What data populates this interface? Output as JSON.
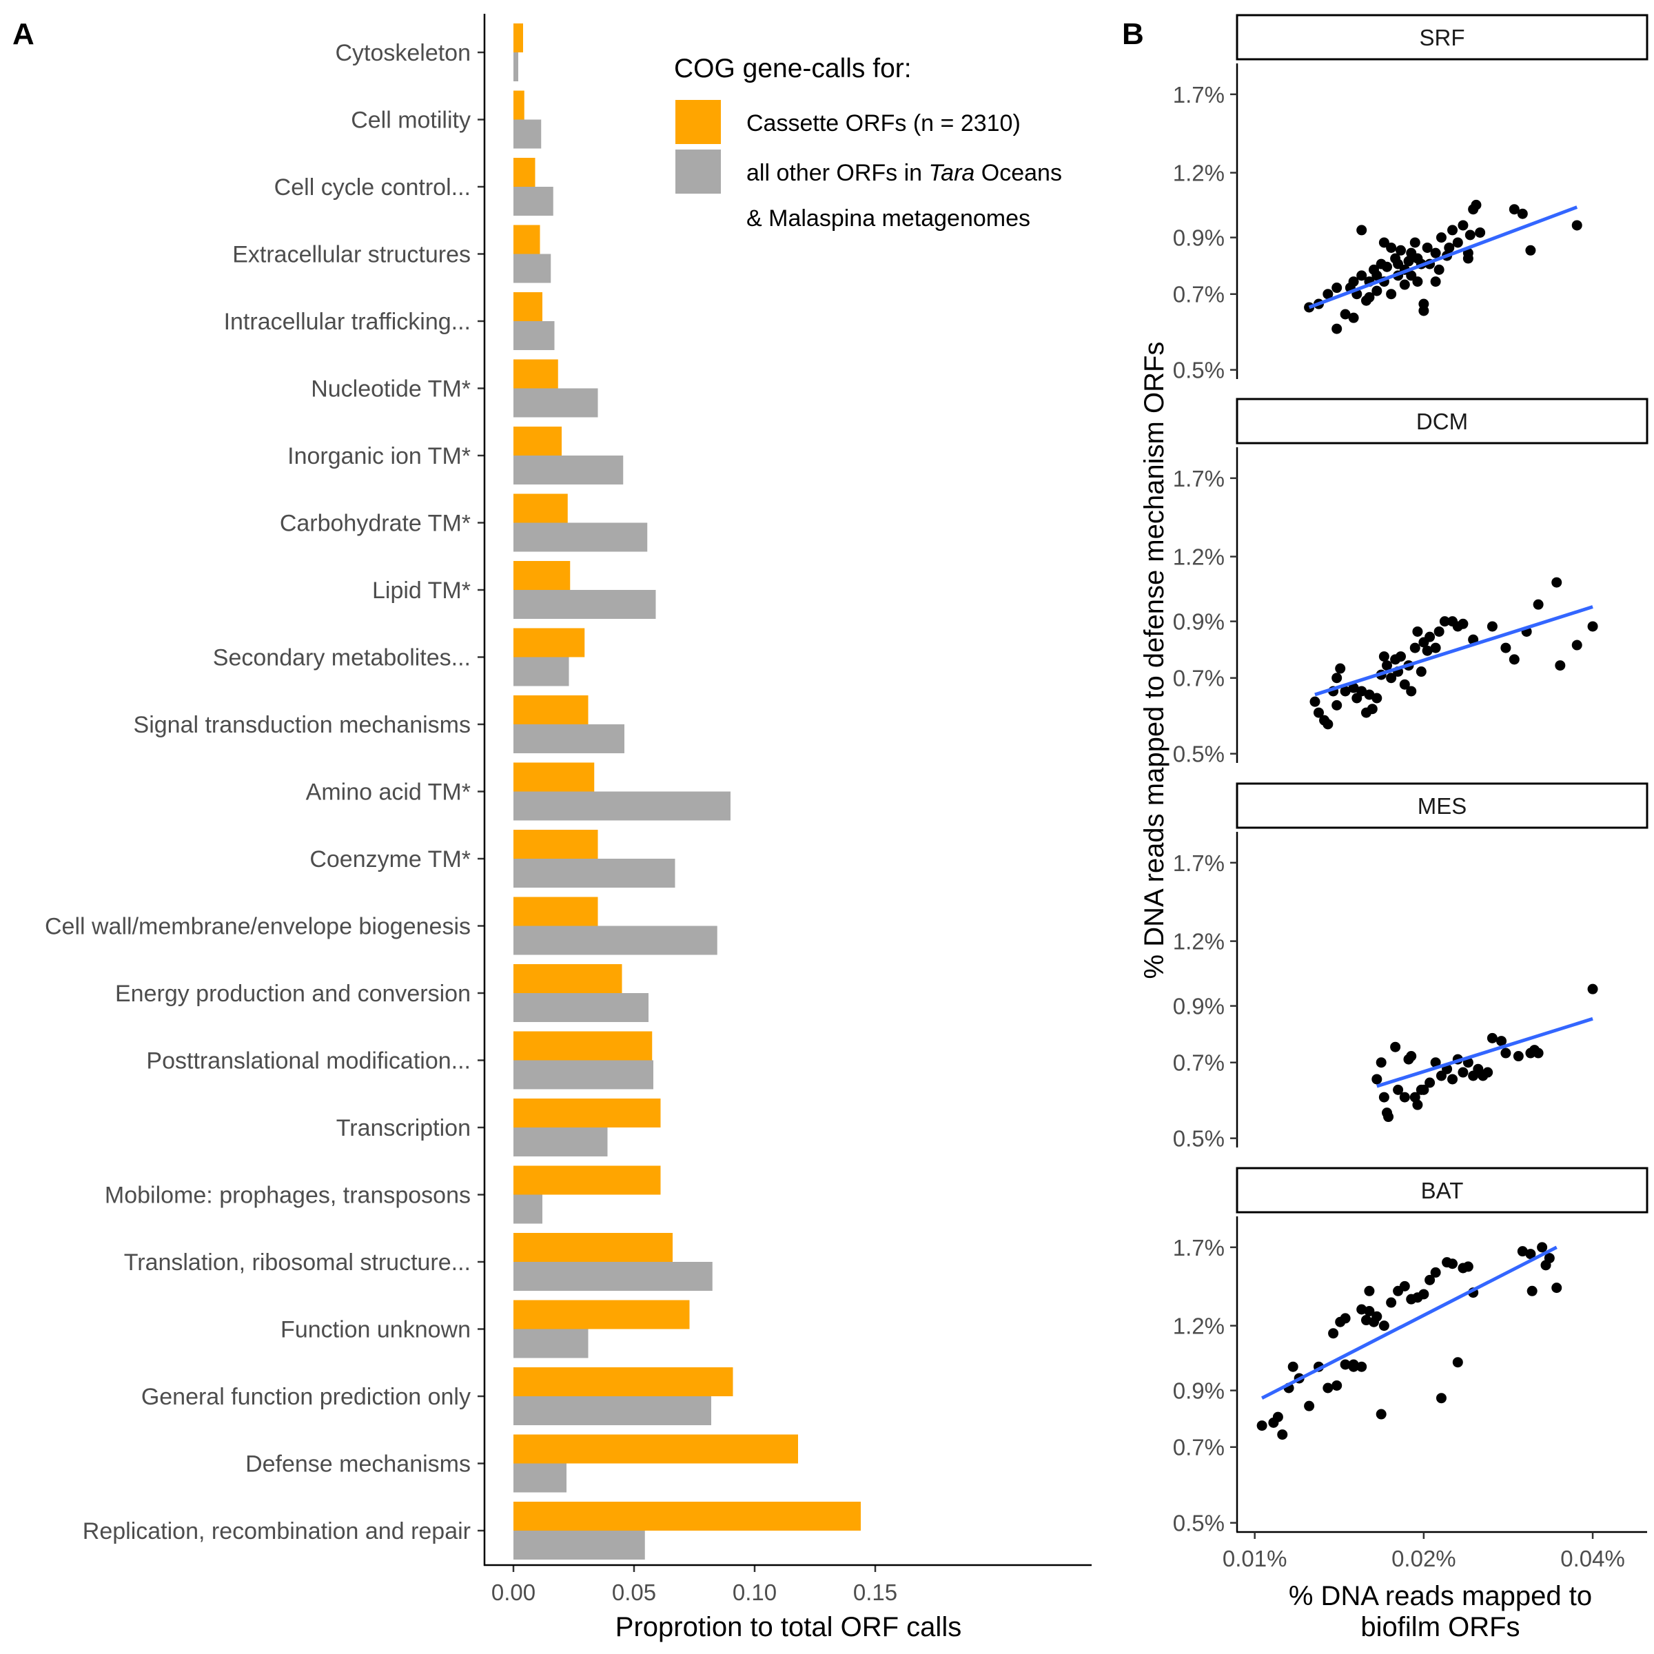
{
  "panel_labels": {
    "a": "A",
    "b": "B"
  },
  "legend": {
    "title": "COG gene-calls for:",
    "items": [
      {
        "key": "cassette",
        "lines": [
          "Cassette ORFs (n = 2310)"
        ]
      },
      {
        "key": "other",
        "lines": [
          "all other ORFs in ",
          "Tara",
          " Oceans",
          "& Malaspina metagenomes"
        ]
      }
    ]
  },
  "chart_data": [
    {
      "type": "bar",
      "orientation": "horizontal",
      "xlabel": "Proprotion to total ORF calls",
      "ylabel": "",
      "xlim": [
        0,
        0.155
      ],
      "xticks": [
        0.0,
        0.05,
        0.1,
        0.15
      ],
      "xtick_labels": [
        "0.00",
        "0.05",
        "0.10",
        "0.15"
      ],
      "grid": false,
      "legend_position": "top-right",
      "colors": {
        "cassette": "#FFA500",
        "other": "#A9A9A9"
      },
      "categories": [
        "Cytoskeleton",
        "Cell motility",
        "Cell cycle control...",
        "Extracellular structures",
        "Intracellular trafficking...",
        "Nucleotide TM*",
        "Inorganic ion TM*",
        "Carbohydrate TM*",
        "Lipid TM*",
        "Secondary metabolites...",
        "Signal transduction mechanisms",
        "Amino acid TM*",
        "Coenzyme TM*",
        "Cell wall/membrane/envelope biogenesis",
        "Energy production and conversion",
        "Posttranslational modification...",
        "Transcription",
        "Mobilome: prophages, transposons",
        "Translation, ribosomal structure...",
        "Function unknown",
        "General function prediction only",
        "Defense mechanisms",
        "Replication, recombination and repair"
      ],
      "series": [
        {
          "key": "cassette",
          "values": [
            0.004,
            0.0045,
            0.009,
            0.011,
            0.012,
            0.0185,
            0.02,
            0.0225,
            0.0235,
            0.0295,
            0.031,
            0.0335,
            0.035,
            0.035,
            0.045,
            0.0575,
            0.061,
            0.061,
            0.066,
            0.073,
            0.091,
            0.118,
            0.144
          ]
        },
        {
          "key": "other",
          "values": [
            0.002,
            0.0115,
            0.0165,
            0.0155,
            0.017,
            0.035,
            0.0455,
            0.0555,
            0.059,
            0.023,
            0.046,
            0.09,
            0.067,
            0.0845,
            0.056,
            0.058,
            0.039,
            0.012,
            0.0825,
            0.031,
            0.082,
            0.022,
            0.0545
          ]
        }
      ]
    },
    {
      "type": "scatter",
      "facets": [
        "SRF",
        "DCM",
        "MES",
        "BAT"
      ],
      "xlabel": [
        "% DNA reads mapped to",
        "biofilm ORFs"
      ],
      "ylabel": "% DNA reads mapped to defense mechanism ORFs",
      "x_scale": "log",
      "y_scale": "log",
      "xlim": [
        0.0093,
        0.05
      ],
      "ylim": [
        0.48,
        1.95
      ],
      "xticks": [
        0.01,
        0.02,
        0.04
      ],
      "xtick_labels": [
        "0.01%",
        "0.02%",
        "0.04%"
      ],
      "yticks": [
        0.5,
        0.7,
        0.9,
        1.2,
        1.7
      ],
      "ytick_labels": [
        "0.5%",
        "0.7%",
        "0.9%",
        "1.2%",
        "1.7%"
      ],
      "point_color": "#000000",
      "fit_line_color": "#3366FF",
      "panels": [
        {
          "facet": "SRF",
          "points": [
            [
              0.0125,
              0.66
            ],
            [
              0.013,
              0.67
            ],
            [
              0.0135,
              0.7
            ],
            [
              0.014,
              0.72
            ],
            [
              0.014,
              0.6
            ],
            [
              0.0145,
              0.64
            ],
            [
              0.0148,
              0.72
            ],
            [
              0.015,
              0.74
            ],
            [
              0.015,
              0.63
            ],
            [
              0.0152,
              0.7
            ],
            [
              0.0155,
              0.76
            ],
            [
              0.0155,
              0.93
            ],
            [
              0.0158,
              0.68
            ],
            [
              0.016,
              0.74
            ],
            [
              0.016,
              0.69
            ],
            [
              0.0163,
              0.78
            ],
            [
              0.0165,
              0.71
            ],
            [
              0.0165,
              0.76
            ],
            [
              0.0168,
              0.8
            ],
            [
              0.017,
              0.74
            ],
            [
              0.017,
              0.88
            ],
            [
              0.0172,
              0.79
            ],
            [
              0.0175,
              0.86
            ],
            [
              0.0175,
              0.7
            ],
            [
              0.0178,
              0.82
            ],
            [
              0.018,
              0.76
            ],
            [
              0.018,
              0.8
            ],
            [
              0.0182,
              0.85
            ],
            [
              0.0185,
              0.78
            ],
            [
              0.0185,
              0.73
            ],
            [
              0.0188,
              0.81
            ],
            [
              0.019,
              0.84
            ],
            [
              0.019,
              0.76
            ],
            [
              0.0193,
              0.88
            ],
            [
              0.0195,
              0.82
            ],
            [
              0.0195,
              0.74
            ],
            [
              0.0198,
              0.8
            ],
            [
              0.02,
              0.65
            ],
            [
              0.02,
              0.67
            ],
            [
              0.0203,
              0.86
            ],
            [
              0.0205,
              0.8
            ],
            [
              0.021,
              0.84
            ],
            [
              0.021,
              0.74
            ],
            [
              0.0213,
              0.78
            ],
            [
              0.0215,
              0.9
            ],
            [
              0.022,
              0.83
            ],
            [
              0.0222,
              0.86
            ],
            [
              0.0225,
              0.93
            ],
            [
              0.023,
              0.88
            ],
            [
              0.0235,
              0.95
            ],
            [
              0.024,
              0.82
            ],
            [
              0.024,
              0.84
            ],
            [
              0.0242,
              0.91
            ],
            [
              0.0245,
              1.02
            ],
            [
              0.0248,
              1.04
            ],
            [
              0.0252,
              0.92
            ],
            [
              0.029,
              1.02
            ],
            [
              0.03,
              1.0
            ],
            [
              0.031,
              0.85
            ],
            [
              0.0375,
              0.95
            ]
          ],
          "fit": [
            [
              0.0125,
              0.66
            ],
            [
              0.0375,
              1.03
            ]
          ]
        },
        {
          "facet": "DCM",
          "points": [
            [
              0.0128,
              0.63
            ],
            [
              0.013,
              0.6
            ],
            [
              0.0133,
              0.58
            ],
            [
              0.0135,
              0.57
            ],
            [
              0.0138,
              0.66
            ],
            [
              0.014,
              0.62
            ],
            [
              0.014,
              0.7
            ],
            [
              0.0142,
              0.73
            ],
            [
              0.0145,
              0.66
            ],
            [
              0.015,
              0.67
            ],
            [
              0.0152,
              0.64
            ],
            [
              0.0155,
              0.66
            ],
            [
              0.0158,
              0.6
            ],
            [
              0.016,
              0.65
            ],
            [
              0.0162,
              0.61
            ],
            [
              0.0165,
              0.64
            ],
            [
              0.0168,
              0.71
            ],
            [
              0.017,
              0.77
            ],
            [
              0.0172,
              0.74
            ],
            [
              0.0175,
              0.7
            ],
            [
              0.0178,
              0.76
            ],
            [
              0.018,
              0.72
            ],
            [
              0.0182,
              0.77
            ],
            [
              0.0185,
              0.68
            ],
            [
              0.0188,
              0.74
            ],
            [
              0.019,
              0.66
            ],
            [
              0.0193,
              0.8
            ],
            [
              0.0195,
              0.86
            ],
            [
              0.0198,
              0.72
            ],
            [
              0.02,
              0.82
            ],
            [
              0.0203,
              0.79
            ],
            [
              0.0205,
              0.84
            ],
            [
              0.021,
              0.8
            ],
            [
              0.0213,
              0.86
            ],
            [
              0.0218,
              0.9
            ],
            [
              0.0225,
              0.9
            ],
            [
              0.023,
              0.88
            ],
            [
              0.0235,
              0.89
            ],
            [
              0.0245,
              0.83
            ],
            [
              0.0265,
              0.88
            ],
            [
              0.028,
              0.8
            ],
            [
              0.029,
              0.76
            ],
            [
              0.0305,
              0.86
            ],
            [
              0.032,
              0.97
            ],
            [
              0.0345,
              1.07
            ],
            [
              0.035,
              0.74
            ],
            [
              0.0375,
              0.81
            ],
            [
              0.04,
              0.88
            ]
          ],
          "fit": [
            [
              0.0128,
              0.65
            ],
            [
              0.04,
              0.96
            ]
          ]
        },
        {
          "facet": "MES",
          "points": [
            [
              0.0165,
              0.65
            ],
            [
              0.0168,
              0.7
            ],
            [
              0.017,
              0.6
            ],
            [
              0.0172,
              0.56
            ],
            [
              0.0173,
              0.55
            ],
            [
              0.0178,
              0.75
            ],
            [
              0.018,
              0.62
            ],
            [
              0.0185,
              0.6
            ],
            [
              0.0188,
              0.71
            ],
            [
              0.019,
              0.72
            ],
            [
              0.0193,
              0.6
            ],
            [
              0.0195,
              0.58
            ],
            [
              0.0198,
              0.62
            ],
            [
              0.02,
              0.62
            ],
            [
              0.0205,
              0.64
            ],
            [
              0.021,
              0.7
            ],
            [
              0.0215,
              0.66
            ],
            [
              0.022,
              0.68
            ],
            [
              0.0225,
              0.65
            ],
            [
              0.023,
              0.71
            ],
            [
              0.0235,
              0.67
            ],
            [
              0.024,
              0.7
            ],
            [
              0.0245,
              0.66
            ],
            [
              0.025,
              0.68
            ],
            [
              0.0255,
              0.66
            ],
            [
              0.026,
              0.67
            ],
            [
              0.0265,
              0.78
            ],
            [
              0.0275,
              0.77
            ],
            [
              0.028,
              0.73
            ],
            [
              0.0295,
              0.72
            ],
            [
              0.031,
              0.73
            ],
            [
              0.0315,
              0.74
            ],
            [
              0.032,
              0.73
            ],
            [
              0.04,
              0.97
            ]
          ],
          "fit": [
            [
              0.0165,
              0.63
            ],
            [
              0.04,
              0.85
            ]
          ]
        },
        {
          "facet": "BAT",
          "points": [
            [
              0.0103,
              0.77
            ],
            [
              0.0108,
              0.78
            ],
            [
              0.011,
              0.8
            ],
            [
              0.0112,
              0.74
            ],
            [
              0.0115,
              0.91
            ],
            [
              0.0117,
              1.0
            ],
            [
              0.012,
              0.95
            ],
            [
              0.0125,
              0.84
            ],
            [
              0.013,
              1.0
            ],
            [
              0.0135,
              0.91
            ],
            [
              0.0138,
              1.16
            ],
            [
              0.014,
              0.92
            ],
            [
              0.0142,
              1.22
            ],
            [
              0.0145,
              1.24
            ],
            [
              0.0145,
              1.01
            ],
            [
              0.015,
              1.01
            ],
            [
              0.015,
              1.0
            ],
            [
              0.0155,
              1.0
            ],
            [
              0.0155,
              1.29
            ],
            [
              0.0158,
              1.23
            ],
            [
              0.016,
              1.4
            ],
            [
              0.016,
              1.28
            ],
            [
              0.0163,
              1.22
            ],
            [
              0.0165,
              1.25
            ],
            [
              0.0168,
              0.81
            ],
            [
              0.017,
              1.2
            ],
            [
              0.0175,
              1.33
            ],
            [
              0.018,
              1.4
            ],
            [
              0.0185,
              1.43
            ],
            [
              0.019,
              1.35
            ],
            [
              0.0195,
              1.36
            ],
            [
              0.02,
              1.38
            ],
            [
              0.0205,
              1.47
            ],
            [
              0.021,
              1.52
            ],
            [
              0.0215,
              0.87
            ],
            [
              0.022,
              1.59
            ],
            [
              0.0225,
              1.58
            ],
            [
              0.023,
              1.02
            ],
            [
              0.0235,
              1.55
            ],
            [
              0.024,
              1.56
            ],
            [
              0.0245,
              1.39
            ],
            [
              0.03,
              1.67
            ],
            [
              0.031,
              1.65
            ],
            [
              0.0312,
              1.4
            ],
            [
              0.0325,
              1.7
            ],
            [
              0.033,
              1.57
            ],
            [
              0.0335,
              1.62
            ],
            [
              0.0345,
              1.42
            ]
          ],
          "fit": [
            [
              0.0103,
              0.87
            ],
            [
              0.0345,
              1.7
            ]
          ]
        }
      ]
    }
  ]
}
